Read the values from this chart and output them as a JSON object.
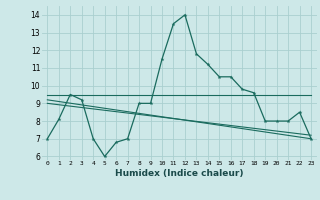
{
  "xlabel": "Humidex (Indice chaleur)",
  "bg_color": "#cde8e8",
  "grid_color": "#aacfcf",
  "line_color": "#1a6b5e",
  "xlim": [
    -0.5,
    23.5
  ],
  "ylim": [
    5.8,
    14.5
  ],
  "xtick_labels": [
    "0",
    "1",
    "2",
    "3",
    "4",
    "5",
    "6",
    "7",
    "8",
    "9",
    "10",
    "11",
    "12",
    "13",
    "14",
    "15",
    "16",
    "17",
    "18",
    "19",
    "20",
    "21",
    "22",
    "23"
  ],
  "xtick_pos": [
    0,
    1,
    2,
    3,
    4,
    5,
    6,
    7,
    8,
    9,
    10,
    11,
    12,
    13,
    14,
    15,
    16,
    17,
    18,
    19,
    20,
    21,
    22,
    23
  ],
  "ytick_labels": [
    "6",
    "7",
    "8",
    "9",
    "10",
    "11",
    "12",
    "13",
    "14"
  ],
  "ytick_pos": [
    6,
    7,
    8,
    9,
    10,
    11,
    12,
    13,
    14
  ],
  "series_main": {
    "x": [
      0,
      1,
      2,
      3,
      4,
      5,
      6,
      7,
      8,
      9,
      10,
      11,
      12,
      13,
      14,
      15,
      16,
      17,
      18,
      19,
      20,
      21,
      22,
      23
    ],
    "y": [
      7.0,
      8.1,
      9.5,
      9.2,
      7.0,
      6.0,
      6.8,
      7.0,
      9.0,
      9.0,
      11.5,
      13.5,
      14.0,
      11.8,
      11.2,
      10.5,
      10.5,
      9.8,
      9.6,
      8.0,
      8.0,
      8.0,
      8.5,
      7.0
    ]
  },
  "series_extra": [
    {
      "x": [
        0,
        23
      ],
      "y": [
        9.5,
        9.5
      ]
    },
    {
      "x": [
        0,
        23
      ],
      "y": [
        9.2,
        7.0
      ]
    },
    {
      "x": [
        0,
        23
      ],
      "y": [
        9.0,
        7.2
      ]
    }
  ]
}
